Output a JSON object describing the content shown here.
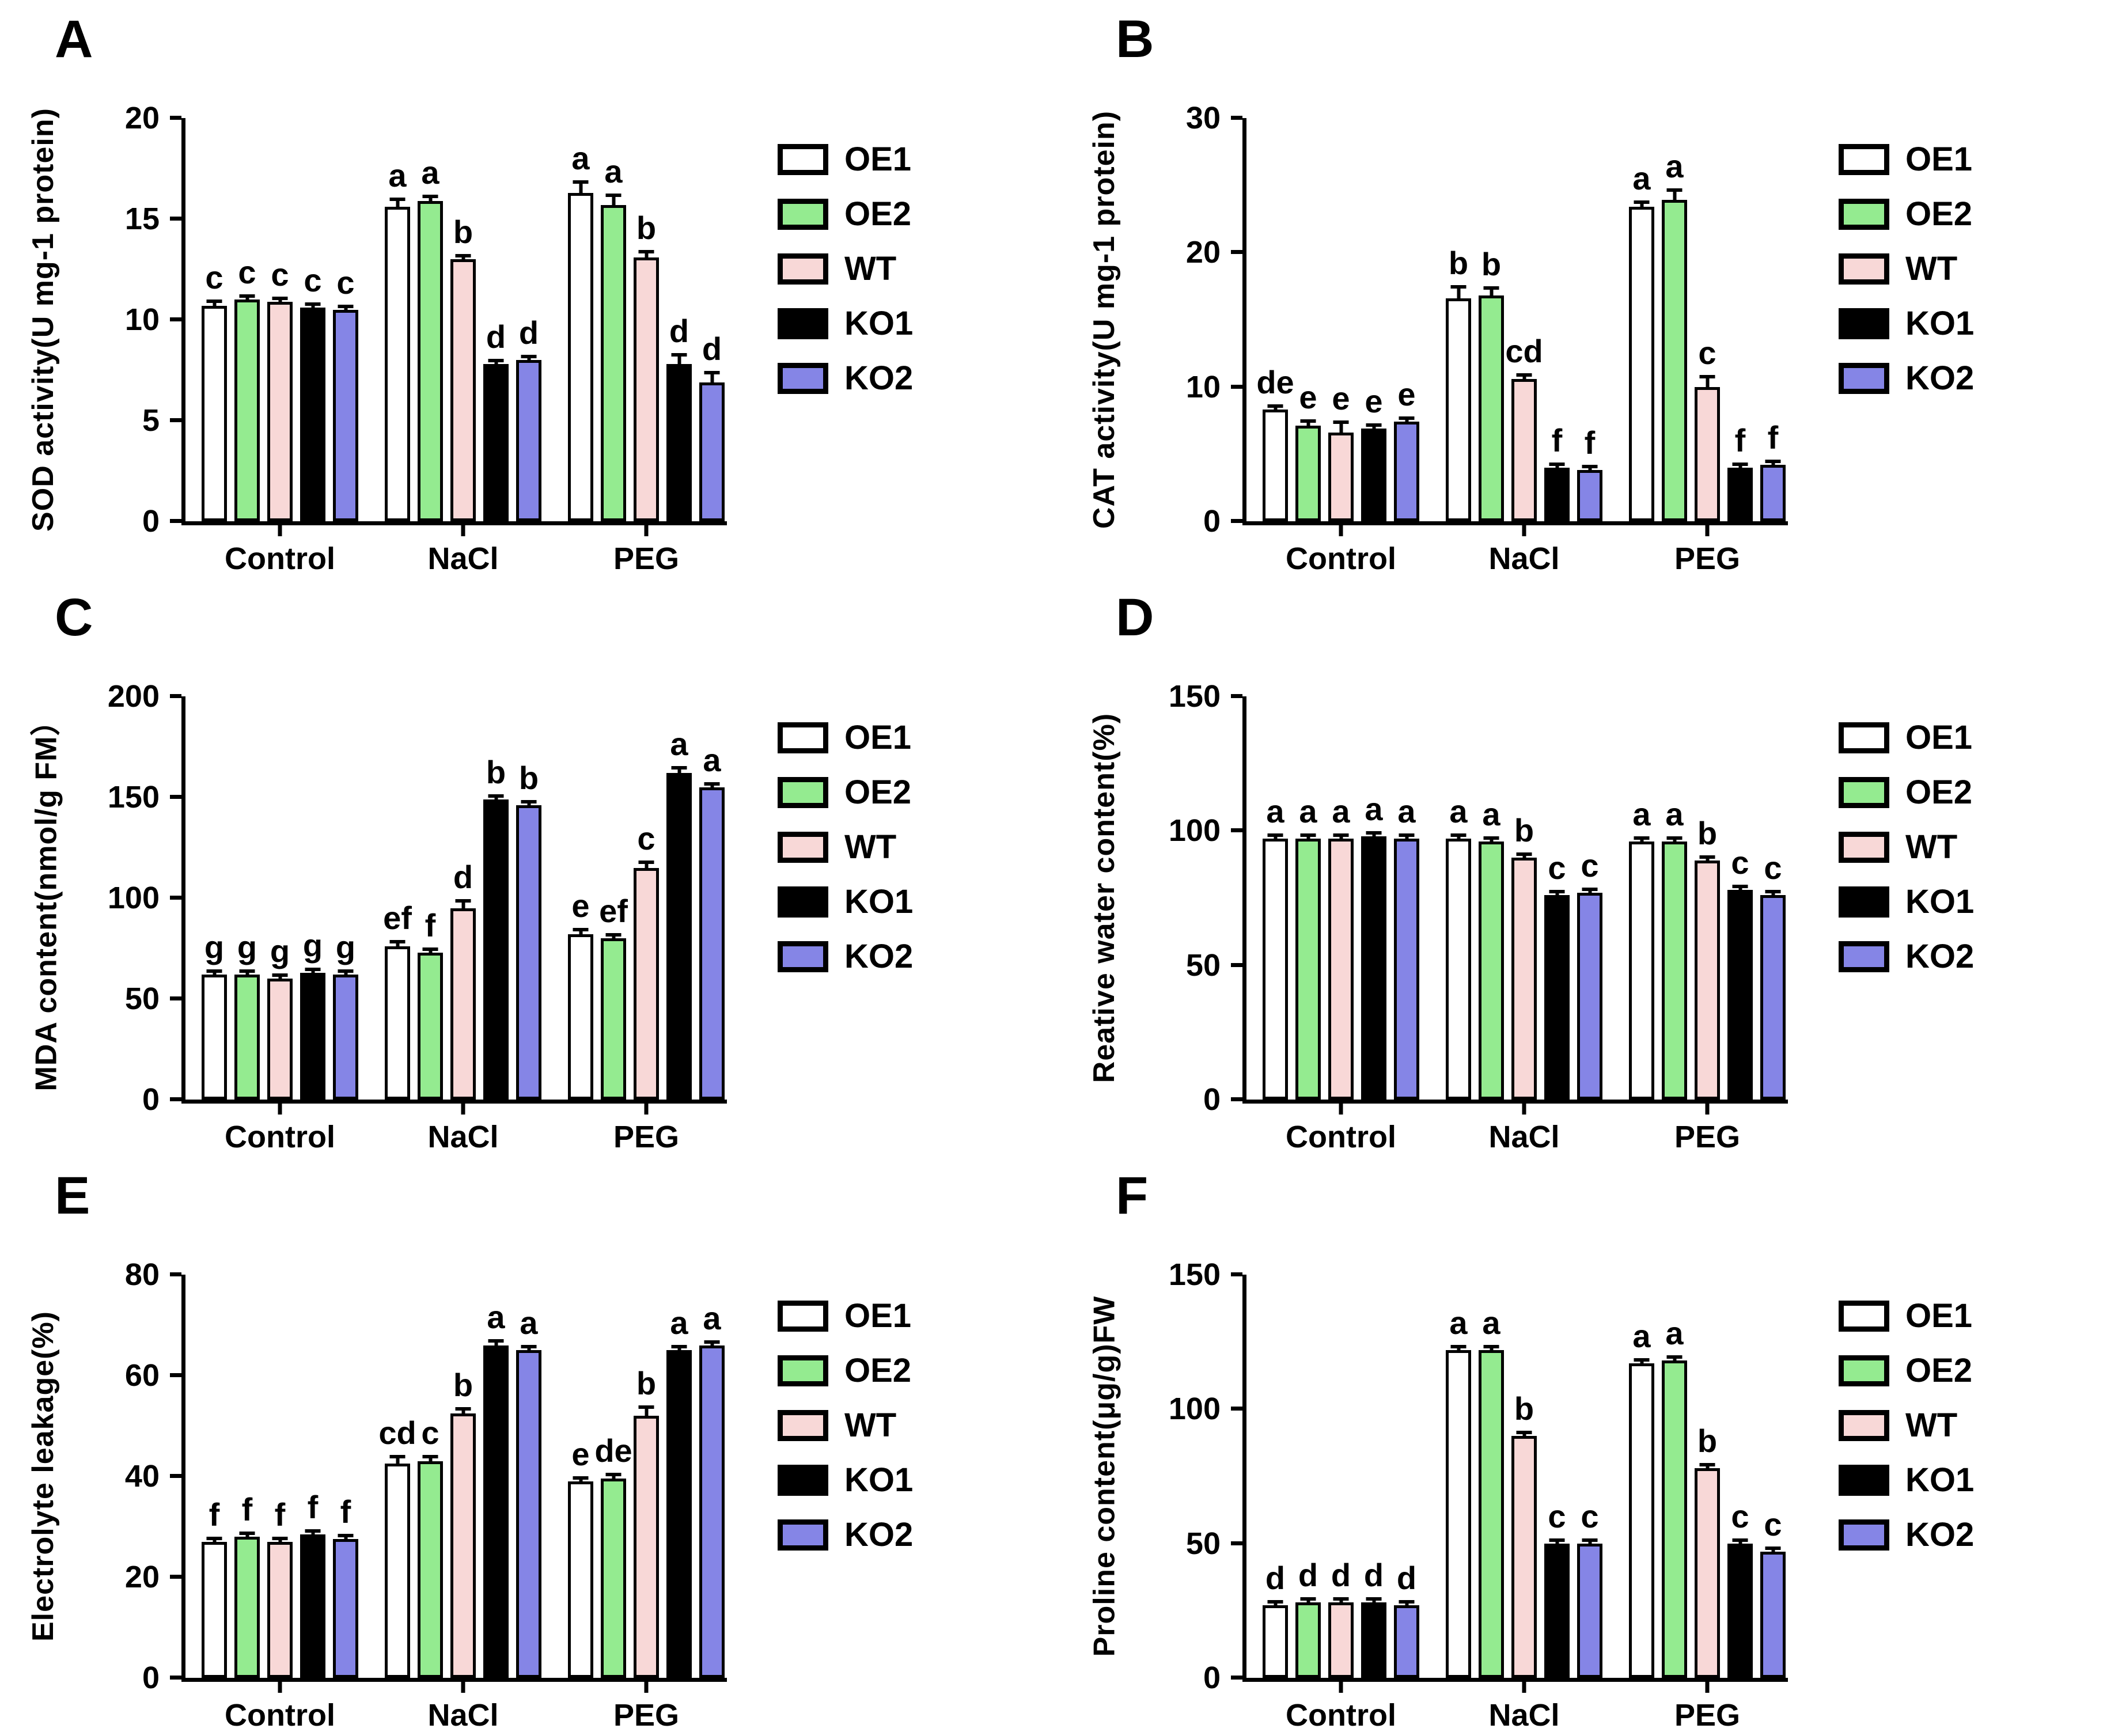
{
  "figure": {
    "series": [
      {
        "name": "OE1",
        "color": "#FFFFFF"
      },
      {
        "name": "OE2",
        "color": "#94EB90"
      },
      {
        "name": "WT",
        "color": "#F8D8D7"
      },
      {
        "name": "KO1",
        "color": "#000000"
      },
      {
        "name": "KO2",
        "color": "#8585E6"
      }
    ],
    "groups": [
      "Control",
      "NaCl",
      "PEG"
    ],
    "bar_border_color": "#000000",
    "background_color": "#FFFFFF"
  },
  "chart_data": [
    {
      "label": "A",
      "type": "bar",
      "title": "",
      "ylabel": "SOD activity(U mg-1 protein)",
      "xlabel": "",
      "ymax": 20,
      "yticks": [
        0,
        5,
        10,
        15,
        20
      ],
      "grid": false,
      "legend_position": "right",
      "categories": [
        "Control",
        "NaCl",
        "PEG"
      ],
      "series": [
        {
          "name": "OE1",
          "values": [
            10.7,
            15.6,
            16.3
          ],
          "errors": [
            0.25,
            0.4,
            0.55
          ],
          "letters": [
            "c",
            "a",
            "a"
          ]
        },
        {
          "name": "OE2",
          "values": [
            11.0,
            15.9,
            15.7
          ],
          "errors": [
            0.15,
            0.25,
            0.5
          ],
          "letters": [
            "c",
            "a",
            "a"
          ]
        },
        {
          "name": "WT",
          "values": [
            10.9,
            13.0,
            13.1
          ],
          "errors": [
            0.2,
            0.2,
            0.3
          ],
          "letters": [
            "c",
            "b",
            "b"
          ]
        },
        {
          "name": "KO1",
          "values": [
            10.6,
            7.8,
            7.8
          ],
          "errors": [
            0.15,
            0.15,
            0.5
          ],
          "letters": [
            "c",
            "d",
            "d"
          ]
        },
        {
          "name": "KO2",
          "values": [
            10.5,
            8.0,
            6.9
          ],
          "errors": [
            0.2,
            0.2,
            0.5
          ],
          "letters": [
            "c",
            "d",
            "d"
          ]
        }
      ]
    },
    {
      "label": "B",
      "type": "bar",
      "title": "",
      "ylabel": "CAT activity(U mg-1 protein)",
      "xlabel": "",
      "ymax": 30,
      "yticks": [
        0,
        10,
        20,
        30
      ],
      "grid": false,
      "legend_position": "right",
      "categories": [
        "Control",
        "NaCl",
        "PEG"
      ],
      "series": [
        {
          "name": "OE1",
          "values": [
            8.3,
            16.6,
            23.4
          ],
          "errors": [
            0.2,
            0.9,
            0.4
          ],
          "letters": [
            "de",
            "b",
            "a"
          ]
        },
        {
          "name": "OE2",
          "values": [
            7.1,
            16.8,
            23.9
          ],
          "errors": [
            0.4,
            0.6,
            0.8
          ],
          "letters": [
            "e",
            "b",
            "a"
          ]
        },
        {
          "name": "WT",
          "values": [
            6.6,
            10.6,
            10.0
          ],
          "errors": [
            0.8,
            0.35,
            0.8
          ],
          "letters": [
            "e",
            "cd",
            "c"
          ]
        },
        {
          "name": "KO1",
          "values": [
            6.9,
            4.0,
            4.0
          ],
          "errors": [
            0.3,
            0.15,
            0.15
          ],
          "letters": [
            "e",
            "f",
            "f"
          ]
        },
        {
          "name": "KO2",
          "values": [
            7.4,
            3.8,
            4.2
          ],
          "errors": [
            0.25,
            0.15,
            0.15
          ],
          "letters": [
            "e",
            "f",
            "f"
          ]
        }
      ]
    },
    {
      "label": "C",
      "type": "bar",
      "title": "",
      "ylabel": "MDA content(nmol/g FM）",
      "xlabel": "",
      "ymax": 200,
      "yticks": [
        0,
        50,
        100,
        150,
        200
      ],
      "grid": false,
      "legend_position": "right",
      "categories": [
        "Control",
        "NaCl",
        "PEG"
      ],
      "series": [
        {
          "name": "OE1",
          "values": [
            62,
            76,
            82
          ],
          "errors": [
            1.5,
            2.5,
            2.5
          ],
          "letters": [
            "g",
            "ef",
            "e"
          ]
        },
        {
          "name": "OE2",
          "values": [
            62,
            73,
            80
          ],
          "errors": [
            1.5,
            2,
            2
          ],
          "letters": [
            "g",
            "f",
            "ef"
          ]
        },
        {
          "name": "WT",
          "values": [
            60,
            95,
            115
          ],
          "errors": [
            2,
            4,
            3
          ],
          "letters": [
            "g",
            "d",
            "c"
          ]
        },
        {
          "name": "KO1",
          "values": [
            63,
            149,
            162
          ],
          "errors": [
            1,
            1.5,
            3
          ],
          "letters": [
            "g",
            "b",
            "a"
          ]
        },
        {
          "name": "KO2",
          "values": [
            62,
            146,
            155
          ],
          "errors": [
            1,
            1.5,
            2
          ],
          "letters": [
            "g",
            "b",
            "a"
          ]
        }
      ]
    },
    {
      "label": "D",
      "type": "bar",
      "title": "",
      "ylabel": "Reative water content(%)",
      "xlabel": "",
      "ymax": 150,
      "yticks": [
        0,
        50,
        100,
        150
      ],
      "grid": false,
      "legend_position": "right",
      "categories": [
        "Control",
        "NaCl",
        "PEG"
      ],
      "series": [
        {
          "name": "OE1",
          "values": [
            97,
            97,
            96
          ],
          "errors": [
            1,
            1,
            1
          ],
          "letters": [
            "a",
            "a",
            "a"
          ]
        },
        {
          "name": "OE2",
          "values": [
            97,
            96,
            96
          ],
          "errors": [
            1,
            1,
            1
          ],
          "letters": [
            "a",
            "a",
            "a"
          ]
        },
        {
          "name": "WT",
          "values": [
            97,
            90,
            89
          ],
          "errors": [
            1,
            1,
            1
          ],
          "letters": [
            "a",
            "b",
            "b"
          ]
        },
        {
          "name": "KO1",
          "values": [
            98,
            76,
            78
          ],
          "errors": [
            0.5,
            1,
            1
          ],
          "letters": [
            "a",
            "c",
            "c"
          ]
        },
        {
          "name": "KO2",
          "values": [
            97,
            77,
            76
          ],
          "errors": [
            1,
            1,
            1
          ],
          "letters": [
            "a",
            "c",
            "c"
          ]
        }
      ]
    },
    {
      "label": "E",
      "type": "bar",
      "title": "",
      "ylabel": "Electrolyte leakage(%)",
      "xlabel": "",
      "ymax": 80,
      "yticks": [
        0,
        20,
        40,
        60,
        80
      ],
      "grid": false,
      "legend_position": "right",
      "categories": [
        "Control",
        "NaCl",
        "PEG"
      ],
      "series": [
        {
          "name": "OE1",
          "values": [
            27,
            42.5,
            39
          ],
          "errors": [
            0.6,
            1.5,
            0.8
          ],
          "letters": [
            "f",
            "cd",
            "e"
          ]
        },
        {
          "name": "OE2",
          "values": [
            28,
            43,
            39.5
          ],
          "errors": [
            0.5,
            1,
            1
          ],
          "letters": [
            "f",
            "c",
            "de"
          ]
        },
        {
          "name": "WT",
          "values": [
            27,
            52.5,
            52
          ],
          "errors": [
            0.6,
            1,
            1.8
          ],
          "letters": [
            "f",
            "b",
            "b"
          ]
        },
        {
          "name": "KO1",
          "values": [
            28.5,
            66,
            65
          ],
          "errors": [
            0.5,
            1,
            0.8
          ],
          "letters": [
            "f",
            "a",
            "a"
          ]
        },
        {
          "name": "KO2",
          "values": [
            27.5,
            65,
            66
          ],
          "errors": [
            0.6,
            0.8,
            0.8
          ],
          "letters": [
            "f",
            "a",
            "a"
          ]
        }
      ]
    },
    {
      "label": "F",
      "type": "bar",
      "title": "",
      "ylabel": "Proline content(μg/g)FW",
      "xlabel": "",
      "ymax": 150,
      "yticks": [
        0,
        50,
        100,
        150
      ],
      "grid": false,
      "legend_position": "right",
      "categories": [
        "Control",
        "NaCl",
        "PEG"
      ],
      "series": [
        {
          "name": "OE1",
          "values": [
            27,
            122,
            117
          ],
          "errors": [
            0.5,
            1,
            1
          ],
          "letters": [
            "d",
            "a",
            "a"
          ]
        },
        {
          "name": "OE2",
          "values": [
            28,
            122,
            118
          ],
          "errors": [
            0.5,
            1,
            1
          ],
          "letters": [
            "d",
            "a",
            "a"
          ]
        },
        {
          "name": "WT",
          "values": [
            28,
            90,
            78
          ],
          "errors": [
            0.5,
            1,
            1
          ],
          "letters": [
            "d",
            "b",
            "b"
          ]
        },
        {
          "name": "KO1",
          "values": [
            28,
            50,
            50
          ],
          "errors": [
            0.5,
            1.2,
            1
          ],
          "letters": [
            "d",
            "c",
            "c"
          ]
        },
        {
          "name": "KO2",
          "values": [
            27,
            50,
            47
          ],
          "errors": [
            0.5,
            1,
            1
          ],
          "letters": [
            "d",
            "c",
            "c"
          ]
        }
      ]
    }
  ]
}
